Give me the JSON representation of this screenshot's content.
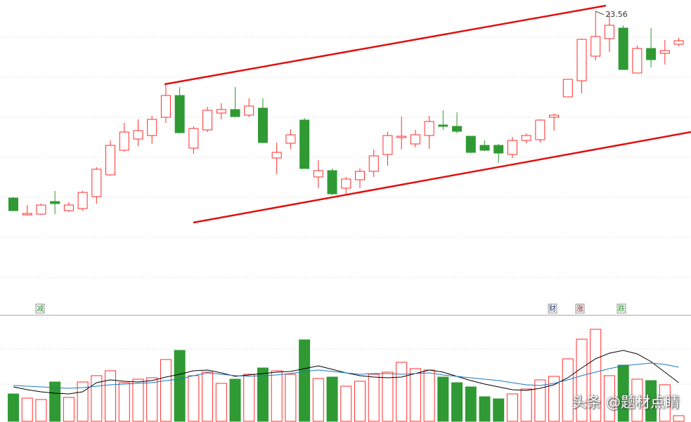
{
  "chart_data": {
    "type": "candlestick",
    "annotation": "23.56",
    "open": [
      20.9,
      20.66,
      20.67,
      20.85,
      20.72,
      20.75,
      20.92,
      21.23,
      21.58,
      21.74,
      21.79,
      22.05,
      22.36,
      21.61,
      21.87,
      22.11,
      22.16,
      22.08,
      22.18,
      21.47,
      21.68,
      22.01,
      21.2,
      21.29,
      21.04,
      21.16,
      21.28,
      21.52,
      21.76,
      21.67,
      21.79,
      21.94,
      21.92,
      21.78,
      21.65,
      21.65,
      21.52,
      21.72,
      21.73,
      22.05,
      22.34,
      22.57,
      22.92,
      23.17,
      23.32,
      22.68,
      23.03,
      22.96,
      23.09
    ],
    "close": [
      20.72,
      20.68,
      20.8,
      20.82,
      20.8,
      20.98,
      21.31,
      21.65,
      21.84,
      21.86,
      22.02,
      22.36,
      21.83,
      21.89,
      22.15,
      22.16,
      22.06,
      22.21,
      21.69,
      21.55,
      21.8,
      21.32,
      21.29,
      20.96,
      21.17,
      21.28,
      21.5,
      21.79,
      21.78,
      21.8,
      21.99,
      21.92,
      21.85,
      21.55,
      21.58,
      21.54,
      21.72,
      21.79,
      22.01,
      22.08,
      22.59,
      23.16,
      23.2,
      23.36,
      22.73,
      23.03,
      22.87,
      23.0,
      23.14
    ],
    "high": [
      20.91,
      20.8,
      20.82,
      21.0,
      20.84,
      21.0,
      21.34,
      21.72,
      21.97,
      22.02,
      22.07,
      22.52,
      22.48,
      21.92,
      22.2,
      22.25,
      22.48,
      22.32,
      22.32,
      21.69,
      21.88,
      22.04,
      21.44,
      21.32,
      21.2,
      21.32,
      21.59,
      21.84,
      22.06,
      21.87,
      22.07,
      22.15,
      22.12,
      21.78,
      21.72,
      21.67,
      21.77,
      21.82,
      22.02,
      22.1,
      22.59,
      23.17,
      23.56,
      23.54,
      23.36,
      23.07,
      23.32,
      23.15,
      23.18
    ],
    "low": [
      20.72,
      20.65,
      20.66,
      20.67,
      20.7,
      20.72,
      20.82,
      21.22,
      21.56,
      21.64,
      21.67,
      21.97,
      21.82,
      21.53,
      21.84,
      22.02,
      22.05,
      22.05,
      21.68,
      21.24,
      21.6,
      21.32,
      21.04,
      20.94,
      20.96,
      21.04,
      21.2,
      21.36,
      21.59,
      21.62,
      21.6,
      21.87,
      21.82,
      21.54,
      21.57,
      21.4,
      21.47,
      21.68,
      21.69,
      21.86,
      22.34,
      22.39,
      22.86,
      22.98,
      22.73,
      22.68,
      22.76,
      22.8,
      23.06
    ],
    "ylim": [
      19.27,
      23.72
    ],
    "up_color": "#ff2d2d",
    "down_color": "#2f9a33",
    "volume": {
      "values": [
        39,
        33,
        31,
        56,
        34,
        56,
        65,
        72,
        55,
        60,
        62,
        88,
        101,
        65,
        70,
        54,
        60,
        67,
        76,
        72,
        67,
        116,
        61,
        63,
        50,
        57,
        67,
        70,
        84,
        75,
        73,
        63,
        55,
        49,
        35,
        32,
        39,
        46,
        59,
        64,
        89,
        117,
        131,
        65,
        80,
        60,
        58,
        52,
        8
      ],
      "ylim": [
        0,
        150
      ],
      "ma": [
        {
          "color": "#000000",
          "values": [
            49,
            45,
            42,
            40,
            39,
            42,
            55,
            59,
            57,
            56,
            58,
            63,
            67,
            72,
            73,
            69,
            64,
            66,
            68,
            70,
            71,
            75,
            79,
            74,
            69,
            65,
            63,
            62,
            63,
            68,
            73,
            70,
            64,
            58,
            53,
            49,
            45,
            44,
            47,
            52,
            62,
            76,
            89,
            97,
            101,
            96,
            85,
            70,
            55
          ]
        },
        {
          "color": "#1c78c0",
          "values": [
            51,
            50,
            49,
            48,
            47,
            48,
            50,
            52,
            53,
            54,
            55,
            58,
            60,
            65,
            69,
            67,
            65,
            64,
            65,
            66,
            68,
            71,
            73,
            71,
            69,
            67,
            68,
            68,
            67,
            68,
            69,
            66,
            64,
            62,
            60,
            58,
            55,
            52,
            51,
            54,
            59,
            65,
            70,
            75,
            79,
            81,
            83,
            81,
            77
          ]
        }
      ]
    },
    "markers": [
      {
        "label": "减",
        "color": "#2f9a33"
      },
      {
        "label": "财",
        "color": "#1a3c78"
      },
      {
        "label": "涨",
        "color": "#8b1a1a"
      },
      {
        "label": "跌",
        "color": "#2f9a33"
      }
    ]
  },
  "watermark": "头条 @题材点睛"
}
